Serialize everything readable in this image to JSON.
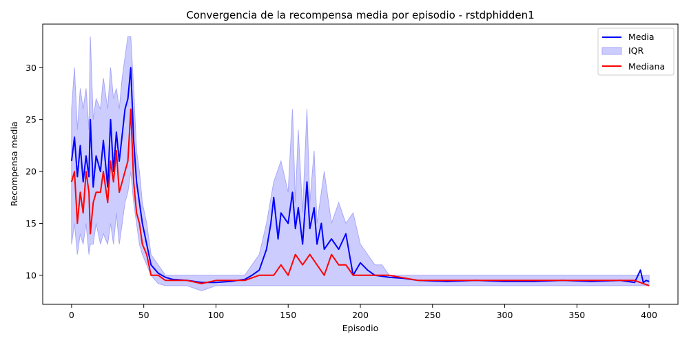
{
  "chart_data": {
    "type": "line",
    "title": "Convergencia de la recompensa media por episodio - rstdphidden1",
    "xlabel": "Episodio",
    "ylabel": "Recompensa media",
    "xlim": [
      -20,
      420
    ],
    "ylim": [
      7.2,
      34.2
    ],
    "xticks": [
      0,
      50,
      100,
      150,
      200,
      250,
      300,
      350,
      400
    ],
    "yticks": [
      10,
      15,
      20,
      25,
      30
    ],
    "grid": false,
    "legend_position": "top-right",
    "legend": [
      "Media",
      "IQR",
      "Mediana"
    ],
    "colors": {
      "media": "#0000ff",
      "iqr_fill": "#ccccff",
      "iqr_edge": "#a8a8f5",
      "mediana": "#ff0000"
    },
    "series": [
      {
        "name": "Media",
        "x": [
          0,
          2,
          4,
          6,
          8,
          10,
          12,
          13,
          15,
          17,
          20,
          22,
          25,
          27,
          29,
          31,
          33,
          35,
          37,
          39,
          41,
          43,
          45,
          47,
          49,
          52,
          55,
          60,
          65,
          70,
          80,
          90,
          100,
          110,
          120,
          125,
          130,
          135,
          138,
          140,
          143,
          145,
          150,
          153,
          155,
          157,
          160,
          163,
          165,
          168,
          170,
          173,
          175,
          180,
          185,
          190,
          195,
          200,
          205,
          210,
          220,
          230,
          240,
          260,
          280,
          300,
          320,
          340,
          360,
          380,
          390,
          394,
          396,
          398,
          400
        ],
        "values": [
          21,
          23.3,
          19.5,
          22.5,
          19,
          21.5,
          19.5,
          25,
          18.5,
          21.5,
          20,
          23,
          18.5,
          25,
          20,
          23.8,
          21,
          23.5,
          26,
          27,
          30,
          23,
          19,
          17,
          15,
          13,
          11,
          10.2,
          9.8,
          9.6,
          9.5,
          9.3,
          9.3,
          9.4,
          9.6,
          10,
          10.5,
          12.5,
          15,
          17.5,
          13.5,
          16,
          15,
          18,
          14.5,
          16.5,
          13,
          19,
          14.5,
          16.5,
          13,
          15,
          12.5,
          13.5,
          12.5,
          14,
          10,
          11.2,
          10.5,
          10,
          9.8,
          9.7,
          9.5,
          9.4,
          9.5,
          9.4,
          9.4,
          9.5,
          9.4,
          9.5,
          9.3,
          10.5,
          9.3,
          9.5,
          9.4
        ]
      },
      {
        "name": "IQR",
        "x": [
          0,
          2,
          4,
          6,
          8,
          10,
          12,
          13,
          15,
          17,
          20,
          22,
          25,
          27,
          29,
          31,
          33,
          35,
          37,
          39,
          41,
          43,
          45,
          47,
          49,
          52,
          55,
          60,
          65,
          70,
          80,
          90,
          100,
          110,
          120,
          125,
          130,
          135,
          140,
          145,
          150,
          153,
          155,
          157,
          160,
          163,
          165,
          168,
          170,
          175,
          180,
          185,
          190,
          195,
          200,
          205,
          210,
          215,
          220,
          230,
          240,
          260,
          280,
          300,
          320,
          340,
          360,
          380,
          390,
          400
        ],
        "low": [
          13,
          15,
          12,
          14,
          13,
          15,
          12,
          13,
          13,
          15,
          13,
          14,
          13,
          15,
          13,
          16,
          13,
          15,
          17,
          18,
          20,
          17,
          15,
          13,
          12,
          11,
          10,
          9.2,
          9,
          9,
          9,
          8.5,
          9,
          9,
          9,
          9,
          9,
          9,
          9,
          9,
          9,
          9,
          9,
          9,
          9,
          9,
          9,
          9,
          9,
          9,
          9,
          9,
          9,
          9,
          9,
          9,
          9,
          9,
          9,
          9,
          9,
          9,
          9,
          9,
          9,
          9,
          9,
          9,
          9,
          9
        ],
        "high": [
          26,
          30,
          24,
          28,
          26,
          28,
          24,
          33,
          25,
          27,
          26,
          29,
          26,
          30,
          27,
          28,
          26,
          29,
          31,
          33,
          33,
          28,
          22,
          20,
          17,
          15,
          12,
          11,
          10,
          10,
          10,
          10,
          10,
          10,
          10,
          11,
          12,
          15,
          19,
          21,
          18,
          26,
          17,
          24,
          16,
          26,
          17,
          22,
          15,
          20,
          15,
          17,
          15,
          16,
          13,
          12,
          11,
          11,
          10,
          10,
          10,
          10,
          10,
          10,
          10,
          10,
          10,
          10,
          10,
          10
        ]
      },
      {
        "name": "Mediana",
        "x": [
          0,
          2,
          4,
          6,
          8,
          10,
          12,
          13,
          15,
          17,
          20,
          22,
          25,
          27,
          29,
          31,
          33,
          35,
          37,
          39,
          41,
          43,
          45,
          47,
          49,
          52,
          55,
          60,
          65,
          70,
          80,
          90,
          100,
          110,
          120,
          130,
          135,
          140,
          145,
          150,
          155,
          160,
          165,
          170,
          175,
          180,
          185,
          190,
          195,
          200,
          210,
          220,
          240,
          260,
          280,
          300,
          320,
          340,
          360,
          380,
          390,
          400
        ],
        "values": [
          19,
          20,
          15,
          18,
          16,
          20,
          18,
          14,
          17,
          18,
          18,
          20,
          17,
          21,
          19,
          22,
          18,
          19,
          20,
          21,
          26,
          19,
          16,
          15,
          13,
          12,
          10,
          10,
          9.5,
          9.5,
          9.5,
          9.2,
          9.5,
          9.5,
          9.5,
          10,
          10,
          10,
          11,
          10,
          12,
          11,
          12,
          11,
          10,
          12,
          11,
          11,
          10,
          10,
          10,
          10,
          9.5,
          9.5,
          9.5,
          9.5,
          9.5,
          9.5,
          9.5,
          9.5,
          9.5,
          9
        ]
      }
    ]
  }
}
